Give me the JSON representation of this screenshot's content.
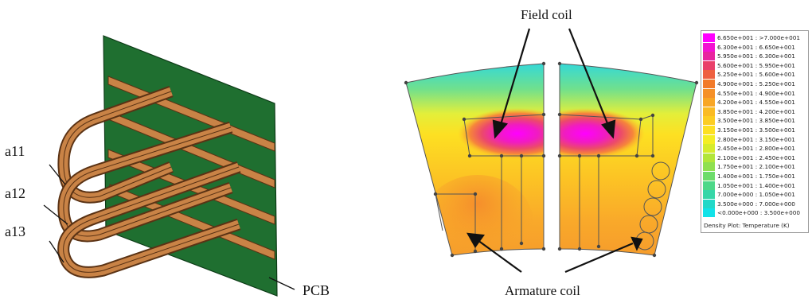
{
  "left_figure": {
    "labels": {
      "a11": "a11",
      "a12": "a12",
      "a13": "a13",
      "pcb": "PCB"
    }
  },
  "right_figure": {
    "labels": {
      "field_coil": "Field coil",
      "armature_coil": "Armature coil"
    },
    "legend": {
      "caption": "Density Plot: Temperature (K)",
      "entries": [
        {
          "text": "6.650e+001 : >7.000e+001",
          "color": "#ff00ff"
        },
        {
          "text": "6.300e+001 : 6.650e+001",
          "color": "#f312d2"
        },
        {
          "text": "5.950e+001 : 6.300e+001",
          "color": "#e8249f"
        },
        {
          "text": "5.600e+001 : 5.950e+001",
          "color": "#e9406a"
        },
        {
          "text": "5.250e+001 : 5.600e+001",
          "color": "#ee6040"
        },
        {
          "text": "4.900e+001 : 5.250e+001",
          "color": "#f27a2a"
        },
        {
          "text": "4.550e+001 : 4.900e+001",
          "color": "#f59028"
        },
        {
          "text": "4.200e+001 : 4.550e+001",
          "color": "#f8a626"
        },
        {
          "text": "3.850e+001 : 4.200e+001",
          "color": "#fabb24"
        },
        {
          "text": "3.500e+001 : 3.850e+001",
          "color": "#fccd22"
        },
        {
          "text": "3.150e+001 : 3.500e+001",
          "color": "#fde022"
        },
        {
          "text": "2.800e+001 : 3.150e+001",
          "color": "#f4ee24"
        },
        {
          "text": "2.450e+001 : 2.800e+001",
          "color": "#d6ec2c"
        },
        {
          "text": "2.100e+001 : 2.450e+001",
          "color": "#b2e63a"
        },
        {
          "text": "1.750e+001 : 2.100e+001",
          "color": "#8fe050"
        },
        {
          "text": "1.400e+001 : 1.750e+001",
          "color": "#6ddc6a"
        },
        {
          "text": "1.050e+001 : 1.400e+001",
          "color": "#4ed888"
        },
        {
          "text": "7.000e+000 : 1.050e+001",
          "color": "#36d6a8"
        },
        {
          "text": "3.500e+000 : 7.000e+000",
          "color": "#22d8c8"
        },
        {
          "text": "<0.000e+000 : 3.500e+000",
          "color": "#12e2e8"
        }
      ]
    }
  }
}
